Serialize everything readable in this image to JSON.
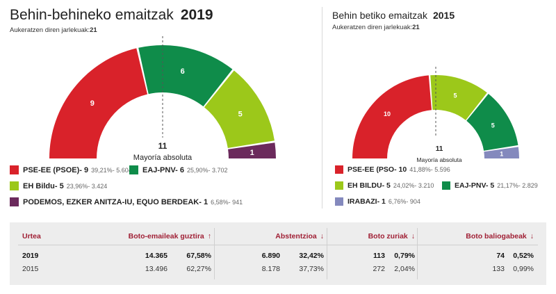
{
  "chart_data": [
    {
      "type": "parliament",
      "title": "Behin-behineko emaitzak",
      "year": "2019",
      "seats_label": "Aukeratzen diren jarlekuak:",
      "total_seats": "21",
      "majority": {
        "value": "11",
        "label": "Mayoría absoluta"
      },
      "parties": [
        {
          "name": "PSE-EE (PSOE)",
          "seats": 9,
          "percent": "39,21%",
          "votes": "5.604",
          "color": "#d9222a"
        },
        {
          "name": "EAJ-PNV",
          "seats": 6,
          "percent": "25,90%",
          "votes": "3.702",
          "color": "#0f8c4a"
        },
        {
          "name": "EH Bildu",
          "seats": 5,
          "percent": "23,96%",
          "votes": "3.424",
          "color": "#9cc81a"
        },
        {
          "name": "PODEMOS, EZKER ANITZA-IU, EQUO BERDEAK",
          "seats": 1,
          "percent": "6,58%",
          "votes": "941",
          "color": "#6b2a5c"
        }
      ]
    },
    {
      "type": "parliament",
      "title": "Behin betiko emaitzak",
      "year": "2015",
      "seats_label": "Aukeratzen diren jarlekuak:",
      "total_seats": "21",
      "majority": {
        "value": "11",
        "label": "Mayoría absoluta"
      },
      "parties": [
        {
          "name": "PSE-EE (PSO",
          "seats": 10,
          "percent": "41,88%",
          "votes": "5.596",
          "color": "#d9222a"
        },
        {
          "name": "EH BILDU",
          "seats": 5,
          "percent": "24,02%",
          "votes": "3.210",
          "color": "#9cc81a"
        },
        {
          "name": "EAJ-PNV",
          "seats": 5,
          "percent": "21,17%",
          "votes": "2.829",
          "color": "#0f8c4a"
        },
        {
          "name": "IRABAZI",
          "seats": 1,
          "percent": "6,76%",
          "votes": "904",
          "color": "#8489bd"
        }
      ]
    }
  ],
  "results_table": {
    "headers": {
      "year": "Urtea",
      "voters": "Boto-emaileak guztira",
      "abstention": "Abstentzioa",
      "blank": "Boto zuriak",
      "invalid": "Boto baliogabeak"
    },
    "rows": [
      {
        "year": "2019",
        "voters": "14.365",
        "voters_pct": "67,58%",
        "abstention": "6.890",
        "abstention_pct": "32,42%",
        "blank": "113",
        "blank_pct": "0,79%",
        "invalid": "74",
        "invalid_pct": "0,52%"
      },
      {
        "year": "2015",
        "voters": "13.496",
        "voters_pct": "62,27%",
        "abstention": "8.178",
        "abstention_pct": "37,73%",
        "blank": "272",
        "blank_pct": "2,04%",
        "invalid": "133",
        "invalid_pct": "0,99%"
      }
    ]
  }
}
